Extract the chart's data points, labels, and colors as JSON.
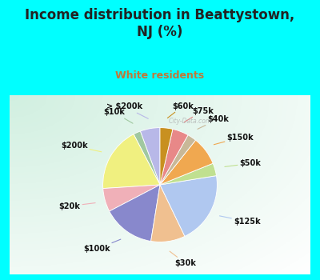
{
  "title": "Income distribution in Beattystown,\nNJ (%)",
  "subtitle": "White residents",
  "title_color": "#222222",
  "subtitle_color": "#c07838",
  "bg_color": "#00FFFF",
  "chart_bg_color": "#d4edd8",
  "watermark": "City-Data.com",
  "slices": [
    {
      "label": "> $200k",
      "value": 5.5,
      "color": "#b8b8e8"
    },
    {
      "label": "$10k",
      "value": 2.0,
      "color": "#a0c8a0"
    },
    {
      "label": "$200k",
      "value": 18.0,
      "color": "#f0f080"
    },
    {
      "label": "$20k",
      "value": 6.5,
      "color": "#f0b0b8"
    },
    {
      "label": "$100k",
      "value": 14.5,
      "color": "#8888cc"
    },
    {
      "label": "$30k",
      "value": 9.5,
      "color": "#f0c090"
    },
    {
      "label": "$125k",
      "value": 20.0,
      "color": "#b0c8f0"
    },
    {
      "label": "$50k",
      "value": 3.5,
      "color": "#c0e090"
    },
    {
      "label": "$150k",
      "value": 8.0,
      "color": "#f0a850"
    },
    {
      "label": "$40k",
      "value": 2.5,
      "color": "#c8b898"
    },
    {
      "label": "$75k",
      "value": 4.5,
      "color": "#e88888"
    },
    {
      "label": "$60k",
      "value": 3.5,
      "color": "#c89020"
    }
  ],
  "title_fontsize": 12,
  "subtitle_fontsize": 9,
  "label_fontsize": 7
}
